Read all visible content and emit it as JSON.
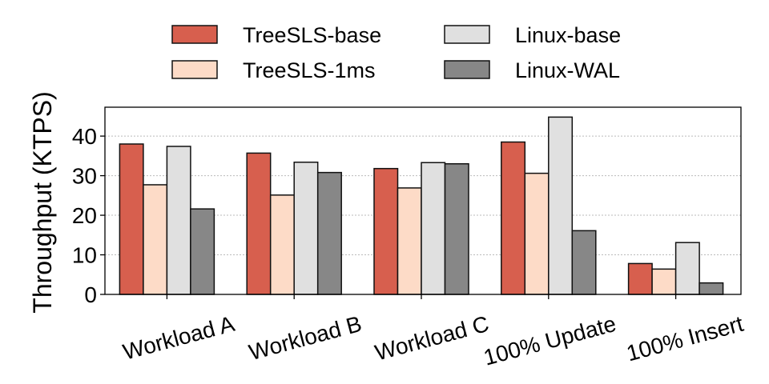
{
  "chart_data": {
    "type": "bar",
    "title": "",
    "xlabel": "",
    "ylabel": "Throughput (KTPS)",
    "ylim": [
      0,
      47.3
    ],
    "yticks": [
      0,
      10,
      20,
      30,
      40
    ],
    "grid": "horizontal dotted",
    "legend_placement": "top, above plot, 2 columns",
    "categories": [
      "Workload A",
      "Workload B",
      "Workload C",
      "100% Update",
      "100% Insert"
    ],
    "series": [
      {
        "name": "TreeSLS-base",
        "color": "#d75f4e",
        "values": [
          38.0,
          35.7,
          31.8,
          38.5,
          7.8
        ]
      },
      {
        "name": "TreeSLS-1ms",
        "color": "#fddbc7",
        "values": [
          27.7,
          25.1,
          26.9,
          30.6,
          6.4
        ]
      },
      {
        "name": "Linux-base",
        "color": "#e0e0e0",
        "values": [
          37.4,
          33.4,
          33.3,
          44.8,
          13.1
        ]
      },
      {
        "name": "Linux-WAL",
        "color": "#878787",
        "values": [
          21.6,
          30.8,
          33.0,
          16.1,
          2.9
        ]
      }
    ]
  }
}
